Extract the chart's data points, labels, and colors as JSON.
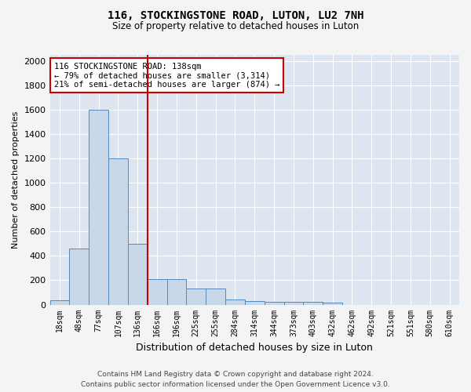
{
  "title1": "116, STOCKINGSTONE ROAD, LUTON, LU2 7NH",
  "title2": "Size of property relative to detached houses in Luton",
  "xlabel": "Distribution of detached houses by size in Luton",
  "ylabel": "Number of detached properties",
  "categories": [
    "18sqm",
    "48sqm",
    "77sqm",
    "107sqm",
    "136sqm",
    "166sqm",
    "196sqm",
    "225sqm",
    "255sqm",
    "284sqm",
    "314sqm",
    "344sqm",
    "373sqm",
    "403sqm",
    "432sqm",
    "462sqm",
    "492sqm",
    "521sqm",
    "551sqm",
    "580sqm",
    "610sqm"
  ],
  "values": [
    35,
    460,
    1600,
    1200,
    500,
    210,
    210,
    130,
    130,
    45,
    30,
    25,
    20,
    20,
    15,
    0,
    0,
    0,
    0,
    0,
    0
  ],
  "bar_color": "#c8d8e8",
  "bar_edge_color": "#5588bb",
  "vline_idx": 4,
  "vline_color": "#cc0000",
  "annotation_text": "116 STOCKINGSTONE ROAD: 138sqm\n← 79% of detached houses are smaller (3,314)\n21% of semi-detached houses are larger (874) →",
  "annotation_box_color": "#ffffff",
  "annotation_box_edge": "#cc0000",
  "ylim": [
    0,
    2050
  ],
  "yticks": [
    0,
    200,
    400,
    600,
    800,
    1000,
    1200,
    1400,
    1600,
    1800,
    2000
  ],
  "bg_color": "#dde6f0",
  "fig_bg_color": "#f4f4f4",
  "footer1": "Contains HM Land Registry data © Crown copyright and database right 2024.",
  "footer2": "Contains public sector information licensed under the Open Government Licence v3.0."
}
